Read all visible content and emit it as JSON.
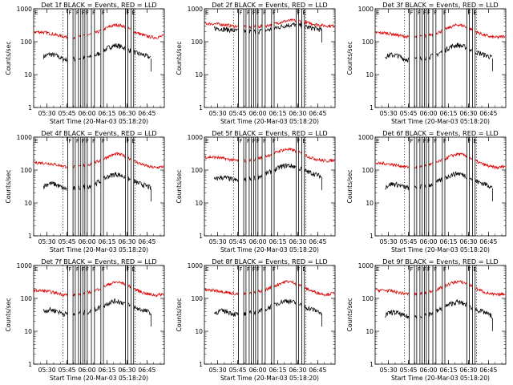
{
  "colors": {
    "events": "#000000",
    "lld": "#dd0000",
    "axes": "#000000"
  },
  "common": {
    "xticks": [
      "05:30",
      "05:45",
      "06:00",
      "06:15",
      "06:30",
      "06:45"
    ],
    "xtick_minutes": [
      30,
      45,
      60,
      75,
      90,
      105
    ],
    "xlim_minutes": [
      20,
      118
    ],
    "yticks": [
      "1",
      "10",
      "100",
      "1000"
    ],
    "ylim": [
      1,
      1000
    ],
    "yscale": "log",
    "ylabel": "Counts/sec",
    "xlabel": "Start Time (20-Mar-03 05:18:20)",
    "event_start_minute": 27,
    "event_end_minute": 108,
    "dotted_minutes": [
      42,
      96
    ],
    "gaps": [
      [
        45.5,
        49.5
      ],
      [
        51.2,
        53.6
      ],
      [
        55.3,
        57.0
      ],
      [
        58.4,
        60.2
      ],
      [
        63.3,
        65.6
      ],
      [
        70.4,
        72.3
      ],
      [
        88.8,
        90.7
      ],
      [
        93.0,
        95.0
      ]
    ],
    "gap_markers": [
      "F",
      "F",
      "F",
      "F",
      "F",
      "F",
      "F",
      "E"
    ]
  },
  "chart_data": [
    {
      "type": "line",
      "title": "Det 1f BLACK = Events, RED = LLD",
      "x": [
        20,
        27,
        32,
        37,
        42,
        47,
        52,
        57,
        62,
        67,
        72,
        77,
        82,
        87,
        92,
        97,
        102,
        107,
        112,
        118
      ],
      "series": [
        {
          "name": "BLACK = Events",
          "color": "#000000",
          "values": [
            null,
            35,
            42,
            38,
            30,
            28,
            30,
            32,
            34,
            40,
            52,
            70,
            78,
            68,
            55,
            45,
            40,
            34,
            20,
            null
          ]
        },
        {
          "name": "RED = LLD",
          "color": "#dd0000",
          "values": [
            200,
            195,
            180,
            160,
            145,
            135,
            140,
            150,
            165,
            190,
            230,
            290,
            330,
            300,
            240,
            190,
            160,
            140,
            135,
            150
          ]
        }
      ]
    },
    {
      "type": "line",
      "title": "Det 2f BLACK = Events, RED = LLD",
      "x": [
        20,
        27,
        32,
        37,
        42,
        47,
        52,
        57,
        62,
        67,
        72,
        77,
        82,
        87,
        92,
        97,
        102,
        107,
        112,
        118
      ],
      "series": [
        {
          "name": "BLACK = Events",
          "color": "#000000",
          "values": [
            null,
            260,
            250,
            235,
            220,
            210,
            205,
            205,
            210,
            225,
            250,
            285,
            320,
            330,
            310,
            280,
            255,
            235,
            225,
            null
          ]
        },
        {
          "name": "RED = LLD",
          "color": "#dd0000",
          "values": [
            360,
            350,
            340,
            320,
            300,
            285,
            280,
            280,
            290,
            310,
            345,
            390,
            430,
            445,
            420,
            380,
            345,
            320,
            305,
            300
          ]
        }
      ]
    },
    {
      "type": "line",
      "title": "Det 3f BLACK = Events, RED = LLD",
      "x": [
        20,
        27,
        32,
        37,
        42,
        47,
        52,
        57,
        62,
        67,
        72,
        77,
        82,
        87,
        92,
        97,
        102,
        107,
        112,
        118
      ],
      "series": [
        {
          "name": "BLACK = Events",
          "color": "#000000",
          "values": [
            null,
            35,
            40,
            38,
            30,
            28,
            30,
            33,
            36,
            42,
            55,
            72,
            80,
            70,
            56,
            46,
            40,
            34,
            22,
            null
          ]
        },
        {
          "name": "RED = LLD",
          "color": "#dd0000",
          "values": [
            190,
            185,
            175,
            158,
            145,
            135,
            138,
            148,
            165,
            190,
            230,
            285,
            330,
            300,
            240,
            190,
            158,
            140,
            135,
            150
          ]
        }
      ]
    },
    {
      "type": "line",
      "title": "Det 4f BLACK = Events, RED = LLD",
      "x": [
        20,
        27,
        32,
        37,
        42,
        47,
        52,
        57,
        62,
        67,
        72,
        77,
        82,
        87,
        92,
        97,
        102,
        107,
        112,
        118
      ],
      "series": [
        {
          "name": "BLACK = Events",
          "color": "#000000",
          "values": [
            null,
            32,
            40,
            36,
            28,
            26,
            28,
            30,
            33,
            40,
            52,
            68,
            76,
            66,
            52,
            42,
            36,
            30,
            18,
            null
          ]
        },
        {
          "name": "RED = LLD",
          "color": "#dd0000",
          "values": [
            170,
            165,
            158,
            145,
            132,
            122,
            125,
            135,
            150,
            175,
            215,
            270,
            310,
            285,
            225,
            175,
            145,
            125,
            118,
            130
          ]
        }
      ]
    },
    {
      "type": "line",
      "title": "Det 5f BLACK = Events, RED = LLD",
      "x": [
        20,
        27,
        32,
        37,
        42,
        47,
        52,
        57,
        62,
        67,
        72,
        77,
        82,
        87,
        92,
        97,
        102,
        107,
        112,
        118
      ],
      "series": [
        {
          "name": "BLACK = Events",
          "color": "#000000",
          "values": [
            null,
            50,
            60,
            58,
            50,
            48,
            52,
            58,
            65,
            80,
            100,
            125,
            140,
            130,
            108,
            90,
            78,
            65,
            45,
            null
          ]
        },
        {
          "name": "RED = LLD",
          "color": "#dd0000",
          "values": [
            250,
            245,
            235,
            215,
            200,
            190,
            195,
            210,
            235,
            270,
            320,
            390,
            430,
            400,
            330,
            265,
            225,
            200,
            190,
            200
          ]
        }
      ]
    },
    {
      "type": "line",
      "title": "Det 6f BLACK = Events, RED = LLD",
      "x": [
        20,
        27,
        32,
        37,
        42,
        47,
        52,
        57,
        62,
        67,
        72,
        77,
        82,
        87,
        92,
        97,
        102,
        107,
        112,
        118
      ],
      "series": [
        {
          "name": "BLACK = Events",
          "color": "#000000",
          "values": [
            null,
            30,
            38,
            36,
            30,
            28,
            30,
            33,
            36,
            44,
            56,
            72,
            80,
            70,
            55,
            44,
            38,
            32,
            15,
            null
          ]
        },
        {
          "name": "RED = LLD",
          "color": "#dd0000",
          "values": [
            160,
            158,
            150,
            138,
            128,
            120,
            124,
            134,
            150,
            175,
            215,
            270,
            310,
            285,
            225,
            175,
            145,
            125,
            118,
            135
          ]
        }
      ]
    },
    {
      "type": "line",
      "title": "Det 7f BLACK = Events, RED = LLD",
      "x": [
        20,
        27,
        32,
        37,
        42,
        47,
        52,
        57,
        62,
        67,
        72,
        77,
        82,
        87,
        92,
        97,
        102,
        107,
        112,
        118
      ],
      "series": [
        {
          "name": "BLACK = Events",
          "color": "#000000",
          "values": [
            null,
            40,
            46,
            42,
            35,
            32,
            34,
            37,
            40,
            48,
            60,
            76,
            84,
            74,
            60,
            50,
            44,
            38,
            22,
            null
          ]
        },
        {
          "name": "RED = LLD",
          "color": "#dd0000",
          "values": [
            175,
            170,
            160,
            145,
            132,
            124,
            128,
            138,
            155,
            180,
            220,
            275,
            315,
            290,
            230,
            180,
            150,
            132,
            125,
            138
          ]
        }
      ]
    },
    {
      "type": "line",
      "title": "Det 8f BLACK = Events, RED = LLD",
      "x": [
        20,
        27,
        32,
        37,
        42,
        47,
        52,
        57,
        62,
        67,
        72,
        77,
        82,
        87,
        92,
        97,
        102,
        107,
        112,
        118
      ],
      "series": [
        {
          "name": "BLACK = Events",
          "color": "#000000",
          "values": [
            null,
            35,
            42,
            40,
            34,
            32,
            34,
            38,
            42,
            50,
            62,
            78,
            86,
            76,
            62,
            52,
            45,
            38,
            22,
            null
          ]
        },
        {
          "name": "RED = LLD",
          "color": "#dd0000",
          "values": [
            180,
            176,
            168,
            152,
            140,
            132,
            136,
            146,
            165,
            192,
            232,
            290,
            330,
            305,
            245,
            192,
            160,
            140,
            132,
            145
          ]
        }
      ]
    },
    {
      "type": "line",
      "title": "Det 9f BLACK = Events, RED = LLD",
      "x": [
        20,
        27,
        32,
        37,
        42,
        47,
        52,
        57,
        62,
        67,
        72,
        77,
        82,
        87,
        92,
        97,
        102,
        107,
        112,
        118
      ],
      "series": [
        {
          "name": "BLACK = Events",
          "color": "#000000",
          "values": [
            null,
            30,
            38,
            36,
            29,
            27,
            29,
            32,
            35,
            42,
            54,
            70,
            78,
            68,
            54,
            44,
            38,
            30,
            12,
            null
          ]
        },
        {
          "name": "RED = LLD",
          "color": "#dd0000",
          "values": [
            180,
            176,
            168,
            152,
            140,
            132,
            136,
            146,
            165,
            192,
            232,
            290,
            325,
            300,
            240,
            188,
            155,
            135,
            128,
            140
          ]
        }
      ]
    }
  ]
}
